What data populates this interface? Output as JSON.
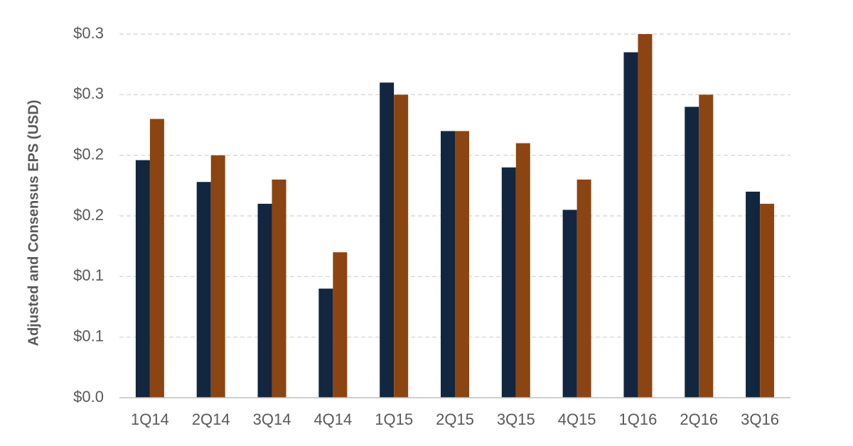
{
  "chart_data": {
    "type": "bar",
    "y_label": "Adjusted and Consensus EPS (USD)",
    "categories": [
      "1Q14",
      "2Q14",
      "3Q14",
      "4Q14",
      "1Q15",
      "2Q15",
      "3Q15",
      "4Q15",
      "1Q16",
      "2Q16",
      "3Q16"
    ],
    "series": [
      {
        "color": "#12263f",
        "values": [
          0.196,
          0.178,
          0.16,
          0.09,
          0.26,
          0.22,
          0.19,
          0.155,
          0.285,
          0.24,
          0.17
        ]
      },
      {
        "color": "#8b4513",
        "values": [
          0.23,
          0.2,
          0.18,
          0.12,
          0.25,
          0.22,
          0.21,
          0.18,
          0.3,
          0.25,
          0.16
        ]
      }
    ],
    "ylim": [
      0,
      0.3
    ],
    "yticks": [
      {
        "value": 0,
        "label": "$0.0"
      },
      {
        "value": 0.05,
        "label": "$0.1"
      },
      {
        "value": 0.1,
        "label": "$0.1"
      },
      {
        "value": 0.15,
        "label": "$0.2"
      },
      {
        "value": 0.2,
        "label": "$0.2"
      },
      {
        "value": 0.25,
        "label": "$0.3"
      },
      {
        "value": 0.3,
        "label": "$0.3"
      }
    ],
    "grid": true
  }
}
